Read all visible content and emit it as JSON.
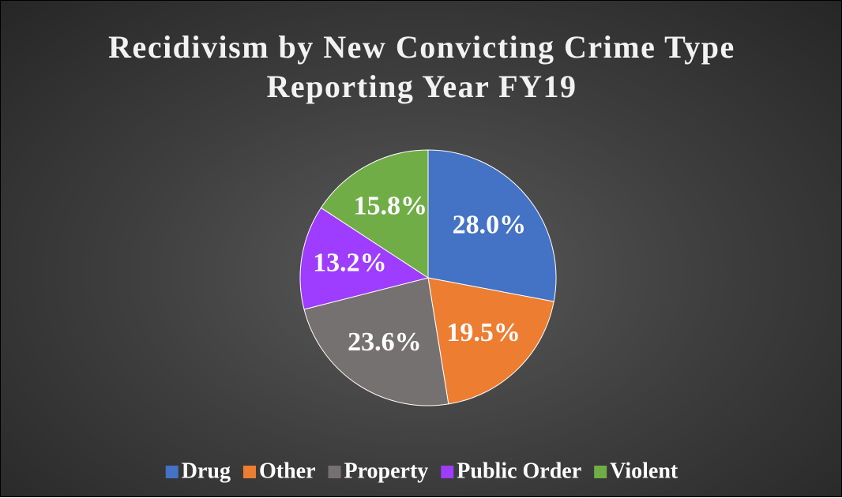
{
  "chart_data": {
    "type": "pie",
    "title": "Recidivism by New Convicting Crime Type Reporting Year FY19",
    "categories": [
      "Drug",
      "Other",
      "Property",
      "Public Order",
      "Violent"
    ],
    "values": [
      28.0,
      19.5,
      23.6,
      13.2,
      15.8
    ],
    "value_labels": [
      "28.0%",
      "19.5%",
      "23.6%",
      "13.2%",
      "15.8%"
    ],
    "colors": [
      "#4472c4",
      "#ed7d31",
      "#767171",
      "#9e3cff",
      "#70ad47"
    ],
    "legend": "bottom"
  }
}
